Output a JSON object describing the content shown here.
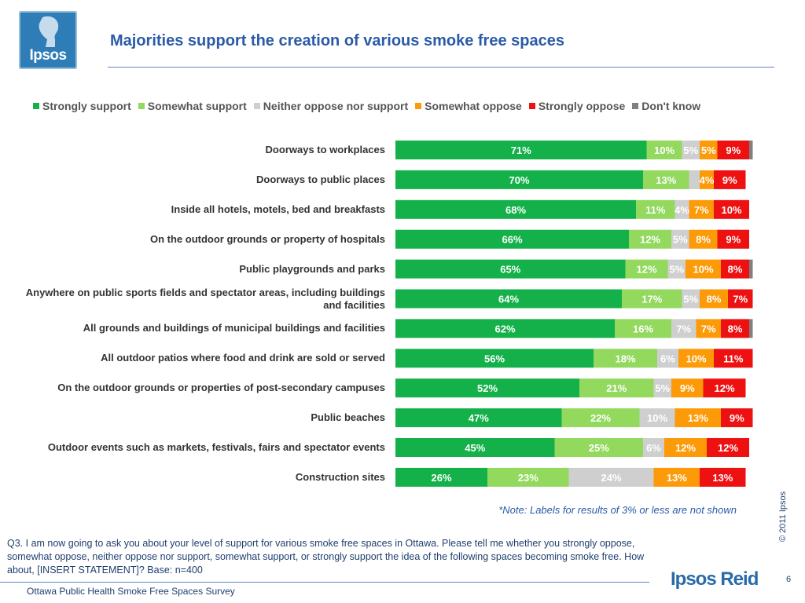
{
  "logo": {
    "text": "Ipsos"
  },
  "title": "Majorities support the creation of various smoke free spaces",
  "chart_data": {
    "type": "bar",
    "orientation": "horizontal",
    "stacked": true,
    "normalized": true,
    "legend_position": "top",
    "categories": [
      "Doorways to workplaces",
      "Doorways to public places",
      "Inside all hotels, motels, bed and breakfasts",
      "On the outdoor grounds or property of hospitals",
      "Public playgrounds and parks",
      "Anywhere on public sports fields and spectator areas, including buildings and facilities",
      "All grounds and buildings of municipal buildings and facilities",
      "All outdoor patios where food and drink are sold or served",
      "On the outdoor grounds or properties of post-secondary campuses",
      "Public beaches",
      "Outdoor events such as markets, festivals, fairs and spectator events",
      "Construction sites"
    ],
    "series": [
      {
        "name": "Strongly support",
        "color": "#14b14b",
        "label_color": "#ffffff",
        "values": [
          71,
          70,
          68,
          66,
          65,
          64,
          62,
          56,
          52,
          47,
          45,
          26
        ]
      },
      {
        "name": "Somewhat support",
        "color": "#92d95e",
        "label_color": "#ffffff",
        "values": [
          10,
          13,
          11,
          12,
          12,
          17,
          16,
          18,
          21,
          22,
          25,
          23
        ]
      },
      {
        "name": "Neither oppose nor support",
        "color": "#cfcfcf",
        "label_color": "#ffffff",
        "values": [
          5,
          3,
          4,
          5,
          5,
          5,
          7,
          6,
          5,
          10,
          6,
          24
        ]
      },
      {
        "name": "Somewhat oppose",
        "color": "#fc9a07",
        "label_color": "#ffffff",
        "values": [
          5,
          4,
          7,
          8,
          10,
          8,
          7,
          10,
          9,
          13,
          12,
          13
        ]
      },
      {
        "name": "Strongly oppose",
        "color": "#ee1111",
        "label_color": "#ffffff",
        "values": [
          9,
          9,
          10,
          9,
          8,
          7,
          8,
          11,
          12,
          9,
          12,
          13
        ]
      },
      {
        "name": "Don't know",
        "color": "#808080",
        "label_color": "#ffffff",
        "values": [
          1,
          0,
          0,
          0,
          1,
          0,
          1,
          0,
          0,
          0,
          0,
          0
        ]
      }
    ],
    "label_threshold": 3,
    "value_suffix": "%"
  },
  "note": "*Note: Labels for results of 3% or less are not shown",
  "question": "Q3.  I am now going to ask you about your level of support for various smoke free spaces in Ottawa. Please tell me whether you strongly oppose, somewhat oppose, neither oppose nor support, somewhat support, or strongly support the idea of the following spaces becoming smoke free. How about, [INSERT STATEMENT]?   Base: n=400",
  "copyright": "© 2011 Ipsos",
  "footer": "Ottawa Public Health Smoke Free Spaces Survey",
  "brand": "Ipsos Reid",
  "page_number": "6"
}
